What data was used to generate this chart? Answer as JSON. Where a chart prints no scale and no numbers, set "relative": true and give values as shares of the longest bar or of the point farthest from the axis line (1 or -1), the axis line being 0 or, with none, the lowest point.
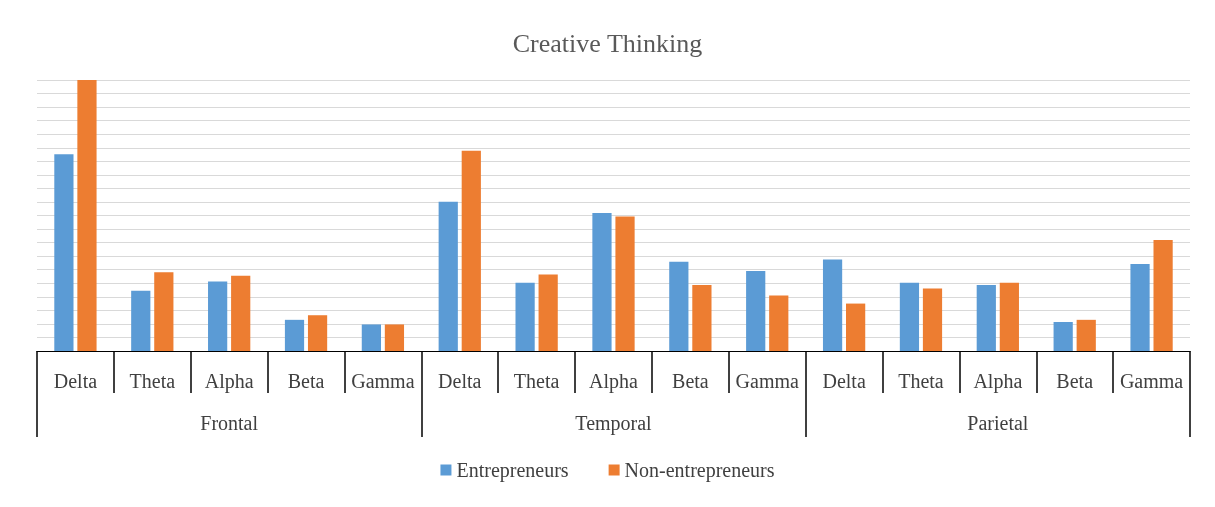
{
  "chart_data": {
    "type": "bar",
    "title": "Creative Thinking",
    "relative": true,
    "grid": true,
    "legend": "bottom",
    "categories": [
      "Delta",
      "Theta",
      "Alpha",
      "Beta",
      "Gamma",
      "Delta",
      "Theta",
      "Alpha",
      "Beta",
      "Gamma",
      "Delta",
      "Theta",
      "Alpha",
      "Beta",
      "Gamma"
    ],
    "annotations": [
      "Frontal",
      "Temporal",
      "Parietal"
    ],
    "series": [
      {
        "name": "Entrepreneurs",
        "color": "#5b9bd5",
        "values": [
          0.726,
          0.222,
          0.256,
          0.115,
          0.098,
          0.551,
          0.252,
          0.509,
          0.329,
          0.295,
          0.338,
          0.252,
          0.244,
          0.107,
          0.321
        ]
      },
      {
        "name": "Non-entrepreneurs",
        "color": "#ed7d31",
        "values": [
          1,
          0.291,
          0.278,
          0.132,
          0.098,
          0.739,
          0.282,
          0.496,
          0.244,
          0.205,
          0.175,
          0.231,
          0.252,
          0.115,
          0.41
        ]
      }
    ]
  }
}
